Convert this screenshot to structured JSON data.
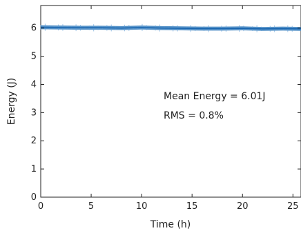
{
  "chart_data": {
    "type": "line",
    "xlabel": "Time (h)",
    "ylabel": "Energy (J)",
    "xlim": [
      0,
      25.8
    ],
    "ylim": [
      0,
      6.8
    ],
    "x_ticks": [
      0,
      5,
      10,
      15,
      20,
      25
    ],
    "y_ticks": [
      0,
      1,
      2,
      3,
      4,
      5,
      6
    ],
    "grid": false,
    "series": [
      {
        "color": "#1f6fb5",
        "x": [
          0,
          2,
          4,
          6,
          8,
          10,
          12,
          14,
          16,
          18,
          20,
          22,
          24,
          25.8
        ],
        "values": [
          6.03,
          6.02,
          6.01,
          6.01,
          6.0,
          6.02,
          6.0,
          5.99,
          5.98,
          5.98,
          5.99,
          5.97,
          5.98,
          5.97
        ],
        "band": 0.07
      }
    ],
    "annotations": [
      "Mean Energy = 6.01J",
      "RMS = 0.8%"
    ]
  }
}
